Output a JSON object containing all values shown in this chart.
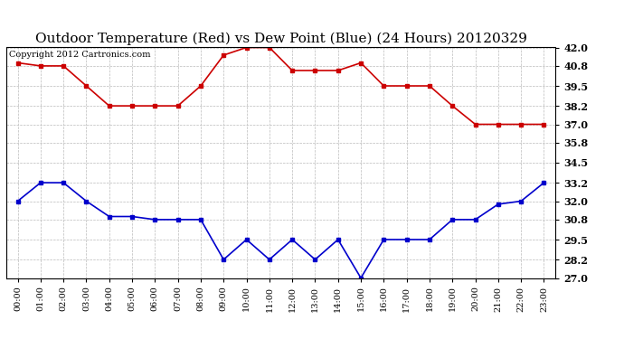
{
  "title": "Outdoor Temperature (Red) vs Dew Point (Blue) (24 Hours) 20120329",
  "copyright": "Copyright 2012 Cartronics.com",
  "hours": [
    "00:00",
    "01:00",
    "02:00",
    "03:00",
    "04:00",
    "05:00",
    "06:00",
    "07:00",
    "08:00",
    "09:00",
    "10:00",
    "11:00",
    "12:00",
    "13:00",
    "14:00",
    "15:00",
    "16:00",
    "17:00",
    "18:00",
    "19:00",
    "20:00",
    "21:00",
    "22:00",
    "23:00"
  ],
  "temp": [
    41.0,
    40.8,
    40.8,
    39.5,
    38.2,
    38.2,
    38.2,
    38.2,
    39.5,
    41.5,
    42.0,
    42.0,
    40.5,
    40.5,
    40.5,
    41.0,
    39.5,
    39.5,
    39.5,
    38.2,
    37.0,
    37.0,
    37.0,
    37.0
  ],
  "dew": [
    32.0,
    33.2,
    33.2,
    32.0,
    31.0,
    31.0,
    30.8,
    30.8,
    30.8,
    28.2,
    29.5,
    28.2,
    29.5,
    28.2,
    29.5,
    27.0,
    29.5,
    29.5,
    29.5,
    30.8,
    30.8,
    31.8,
    32.0,
    33.2
  ],
  "temp_color": "#cc0000",
  "dew_color": "#0000cc",
  "bg_color": "#ffffff",
  "grid_color": "#bbbbbb",
  "ylim": [
    27.0,
    42.0
  ],
  "yticks": [
    27.0,
    28.2,
    29.5,
    30.8,
    32.0,
    33.2,
    34.5,
    35.8,
    37.0,
    38.2,
    39.5,
    40.8,
    42.0
  ],
  "title_fontsize": 11,
  "copyright_fontsize": 7,
  "marker": "s",
  "markersize": 3,
  "linewidth": 1.2
}
